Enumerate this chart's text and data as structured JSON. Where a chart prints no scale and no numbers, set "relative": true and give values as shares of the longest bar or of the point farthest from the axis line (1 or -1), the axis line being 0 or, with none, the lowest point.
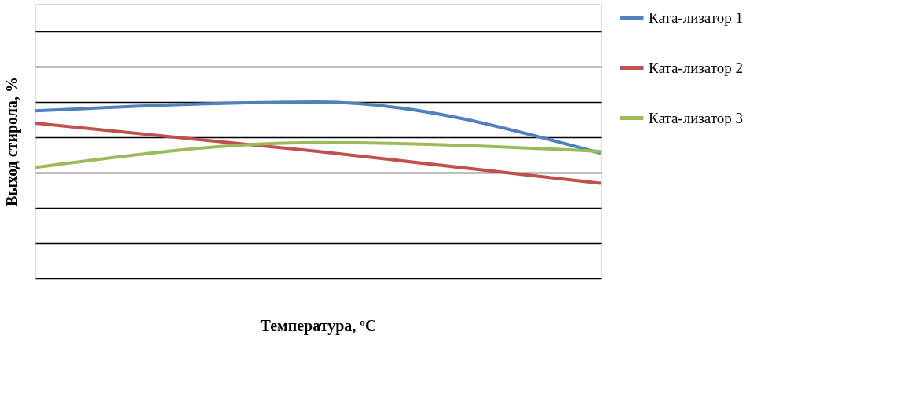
{
  "chart_data": {
    "type": "line",
    "relative": true,
    "xlabel": "Температура, ºC",
    "ylabel": "Выход стирола, %",
    "categories": [
      null,
      null,
      null
    ],
    "grid": "y",
    "legend": "right",
    "tick_labels": false,
    "marker": "none",
    "line_style": "solid",
    "series": [
      {
        "name": "Ката-лизатор 1",
        "color": "#4f81bd",
        "values": [
          0.95,
          1.0,
          0.71
        ]
      },
      {
        "name": "Ката-лизатор 2",
        "color": "#c0504d",
        "values": [
          0.88,
          0.72,
          0.54
        ]
      },
      {
        "name": "Ката-лизатор 3",
        "color": "#9bbb59",
        "values": [
          0.63,
          0.77,
          0.72
        ]
      }
    ]
  }
}
